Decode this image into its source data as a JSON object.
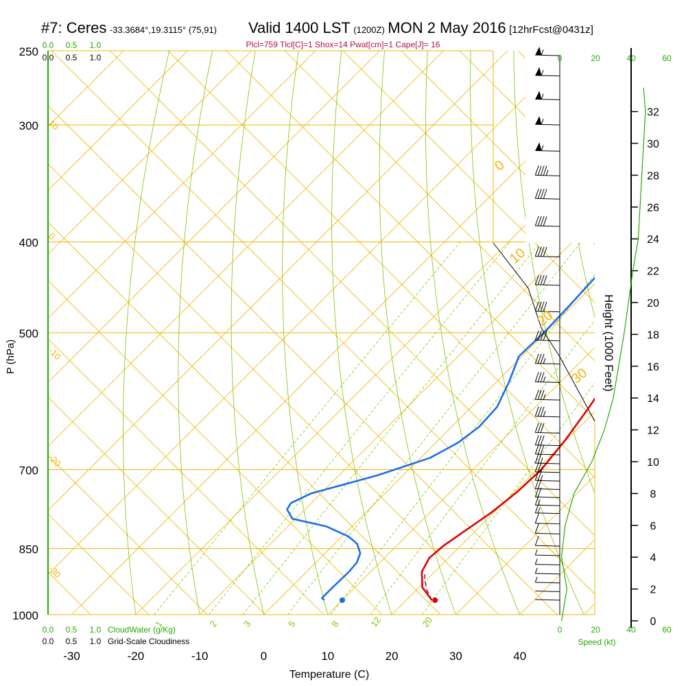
{
  "header": {
    "station": "#7: Ceres",
    "coords": "-33.3684°,19.3115° (75,91)",
    "valid": "Valid 1400 LST",
    "zulu": "(1200Z)",
    "date": "MON 2 May 2016",
    "forecast": "[12hrFcst@0431z]"
  },
  "indices": "Plcl=759 Tlcl[C]=1 Shox=14 Pwat[cm]=1 Cape[J]= 16",
  "colors": {
    "temperature": "#e00000",
    "dewpoint": "#1a6ee8",
    "isotherm": "#f0b400",
    "adiabat": "#7cc400",
    "mixing_ratio": "#7cc400",
    "green_text": "#22aa00",
    "indices_text": "#b0104a"
  },
  "chart_data": {
    "type": "line",
    "title": "#7: Ceres",
    "xlabel": "Temperature (C)",
    "ylabel": "P (hPa)",
    "y2label": "Height (1000 Feet)",
    "xlim": [
      -35,
      45
    ],
    "ylim": [
      1000,
      250
    ],
    "log_scale_y": true,
    "x_ticks": [
      "-30",
      "-20",
      "-10",
      "0",
      "10",
      "20",
      "30",
      "40"
    ],
    "y_ticks": [
      "250",
      "300",
      "400",
      "500",
      "700",
      "850",
      "1000"
    ],
    "height_ticks": [
      "0",
      "2",
      "4",
      "6",
      "8",
      "10",
      "12",
      "14",
      "16",
      "18",
      "20",
      "22",
      "24",
      "26",
      "28",
      "30",
      "32"
    ],
    "isotherm_labels": [
      "10",
      "0",
      "-10",
      "-20",
      "-30"
    ],
    "adiabat_labels": [
      "0",
      "10",
      "20",
      "30"
    ],
    "mixing_ratio_labels": [
      "1",
      "2",
      "3",
      "5",
      "8",
      "12",
      "20"
    ],
    "cloud_water_ticks": [
      "0.0",
      "0.5",
      "1.0"
    ],
    "cloud_water_label": "CloudWater (g/Kg)",
    "cloudiness_label": "Grid-Scale Cloudiness",
    "speed_ticks": [
      "0",
      "20",
      "40",
      "60"
    ],
    "speed_label": "Speed (kt)",
    "series": [
      {
        "name": "temperature",
        "points": [
          [
            24.0,
            965
          ],
          [
            20.5,
            935
          ],
          [
            18.0,
            900
          ],
          [
            17.0,
            870
          ],
          [
            17.3,
            845
          ],
          [
            18.3,
            815
          ],
          [
            19.6,
            778
          ],
          [
            20.4,
            740
          ],
          [
            20.7,
            700
          ],
          [
            19.8,
            650
          ],
          [
            18.4,
            600
          ],
          [
            16.5,
            548
          ],
          [
            15.0,
            505
          ],
          [
            11.5,
            450
          ],
          [
            8.0,
            400
          ],
          [
            5.0,
            360
          ],
          [
            2.5,
            330
          ],
          [
            0.2,
            300
          ],
          [
            -1.3,
            275
          ],
          [
            -1.2,
            260
          ]
        ]
      },
      {
        "name": "dewpoint",
        "points": [
          [
            7.2,
            965
          ],
          [
            6.5,
            960
          ],
          [
            6.5,
            940
          ],
          [
            6.6,
            900
          ],
          [
            6.4,
            880
          ],
          [
            5.5,
            860
          ],
          [
            3.5,
            840
          ],
          [
            1.0,
            825
          ],
          [
            -4.0,
            805
          ],
          [
            -10.5,
            790
          ],
          [
            -12.8,
            772
          ],
          [
            -13.2,
            760
          ],
          [
            -11.5,
            742
          ],
          [
            -4.0,
            710
          ],
          [
            1.5,
            680
          ],
          [
            3.5,
            655
          ],
          [
            4.3,
            630
          ],
          [
            4.0,
            600
          ],
          [
            2.0,
            565
          ],
          [
            -0.5,
            530
          ],
          [
            -0.3,
            500
          ],
          [
            -0.5,
            470
          ],
          [
            -1.0,
            430
          ],
          [
            -2.5,
            400
          ],
          [
            -6.0,
            370
          ],
          [
            -11.2,
            340
          ],
          [
            -13.2,
            322
          ],
          [
            -11.7,
            300
          ],
          [
            -9.7,
            280
          ],
          [
            -8.7,
            260
          ]
        ]
      },
      {
        "name": "parcel",
        "points": [
          [
            24.0,
            965
          ],
          [
            21.5,
            940
          ],
          [
            19.5,
            915
          ],
          [
            18.5,
            900
          ]
        ]
      }
    ],
    "surface_temperature": 24.5,
    "surface_dewpoint": 10.0,
    "surface_pressure": 965,
    "height_profile_kt": [
      [
        1,
        0
      ],
      [
        4,
        2
      ],
      [
        1,
        4
      ],
      [
        3,
        6
      ],
      [
        8,
        8
      ],
      [
        18,
        10
      ],
      [
        25,
        12
      ],
      [
        30,
        14
      ],
      [
        36,
        18
      ],
      [
        41,
        22
      ],
      [
        44,
        24
      ],
      [
        45,
        26
      ],
      [
        46,
        28
      ],
      [
        47,
        30
      ],
      [
        48,
        32
      ],
      [
        47,
        33.5
      ]
    ],
    "wind_barbs": [
      {
        "p": 965,
        "kt": 4
      },
      {
        "p": 945,
        "kt": 4
      },
      {
        "p": 925,
        "kt": 5
      },
      {
        "p": 905,
        "kt": 6
      },
      {
        "p": 885,
        "kt": 7
      },
      {
        "p": 865,
        "kt": 8
      },
      {
        "p": 845,
        "kt": 10
      },
      {
        "p": 820,
        "kt": 10
      },
      {
        "p": 800,
        "kt": 12
      },
      {
        "p": 780,
        "kt": 15
      },
      {
        "p": 765,
        "kt": 18
      },
      {
        "p": 750,
        "kt": 20
      },
      {
        "p": 735,
        "kt": 22
      },
      {
        "p": 720,
        "kt": 25
      },
      {
        "p": 705,
        "kt": 25
      },
      {
        "p": 690,
        "kt": 28
      },
      {
        "p": 675,
        "kt": 30
      },
      {
        "p": 660,
        "kt": 30
      },
      {
        "p": 640,
        "kt": 30
      },
      {
        "p": 615,
        "kt": 35
      },
      {
        "p": 590,
        "kt": 35
      },
      {
        "p": 565,
        "kt": 35
      },
      {
        "p": 540,
        "kt": 35
      },
      {
        "p": 510,
        "kt": 40
      },
      {
        "p": 475,
        "kt": 40
      },
      {
        "p": 445,
        "kt": 40
      },
      {
        "p": 415,
        "kt": 40
      },
      {
        "p": 385,
        "kt": 40
      },
      {
        "p": 360,
        "kt": 40
      },
      {
        "p": 340,
        "kt": 45
      },
      {
        "p": 320,
        "kt": 55
      },
      {
        "p": 300,
        "kt": 55
      },
      {
        "p": 282,
        "kt": 55
      },
      {
        "p": 266,
        "kt": 55
      },
      {
        "p": 253,
        "kt": 55
      }
    ]
  }
}
